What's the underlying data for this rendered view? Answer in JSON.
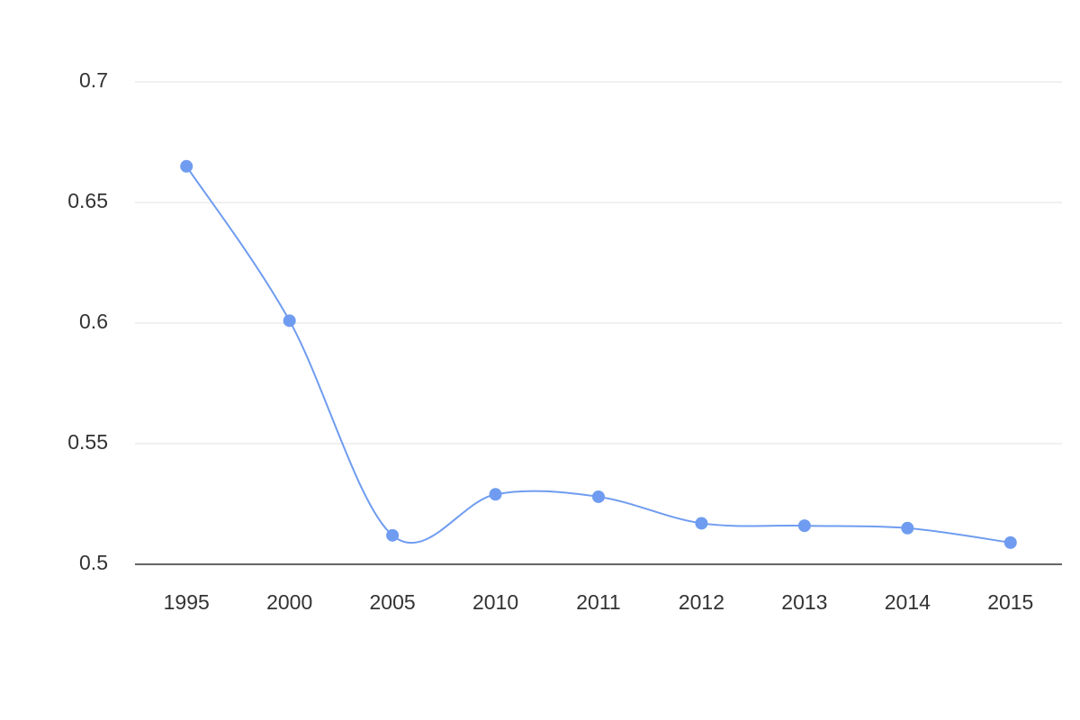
{
  "chart_data": {
    "type": "line",
    "categories": [
      "1995",
      "2000",
      "2005",
      "2010",
      "2011",
      "2012",
      "2013",
      "2014",
      "2015"
    ],
    "values": [
      0.665,
      0.601,
      0.512,
      0.529,
      0.528,
      0.517,
      0.516,
      0.515,
      0.509
    ],
    "color": "#6f9cf0",
    "ylim": [
      0.5,
      0.7
    ],
    "yticks": [
      0.5,
      0.55,
      0.6,
      0.65,
      0.7
    ],
    "grid": true,
    "smooth": true
  }
}
